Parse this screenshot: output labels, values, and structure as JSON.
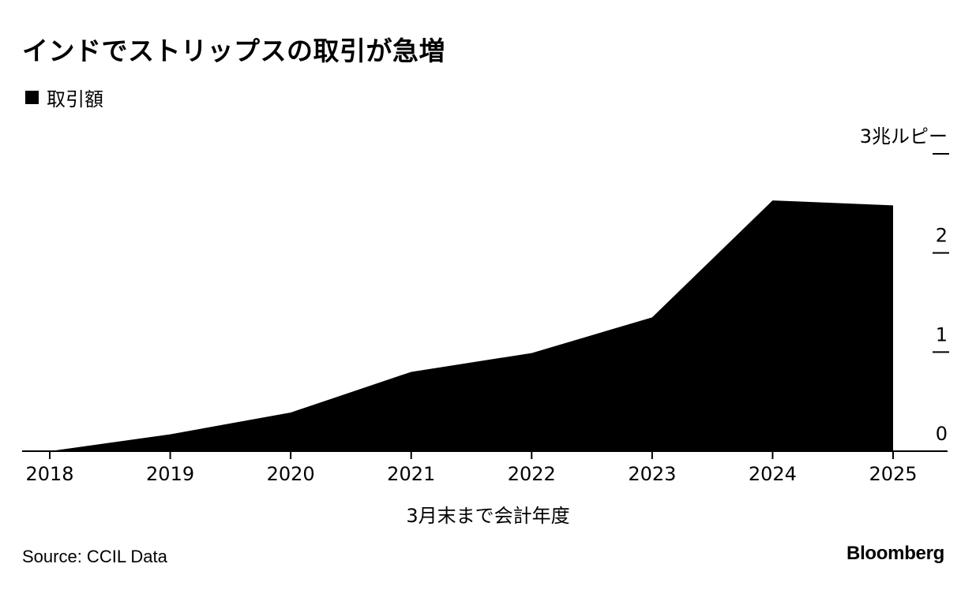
{
  "title": "インドでストリップスの取引が急増",
  "legend": {
    "label": "取引額",
    "color": "#000000"
  },
  "source": "Source: CCIL Data",
  "brand": "Bloomberg",
  "chart_data": {
    "type": "area",
    "title": "インドでストリップスの取引が急増",
    "xlabel": "3月末まで会計年度",
    "ylabel": "",
    "y_unit_label": "3兆ルピー",
    "x": [
      "2018",
      "2019",
      "2020",
      "2021",
      "2022",
      "2023",
      "2024",
      "2025"
    ],
    "series": [
      {
        "name": "取引額",
        "values": [
          0.0,
          0.17,
          0.39,
          0.8,
          0.99,
          1.35,
          2.53,
          2.48
        ],
        "color": "#000000"
      }
    ],
    "ylim": [
      0,
      3
    ],
    "yticks": [
      0,
      1,
      2,
      3
    ],
    "ytick_labels": [
      "0",
      "1",
      "2",
      "3兆ルピー"
    ],
    "grid": false,
    "y_axis_side": "right",
    "legend_position": "top-left"
  }
}
